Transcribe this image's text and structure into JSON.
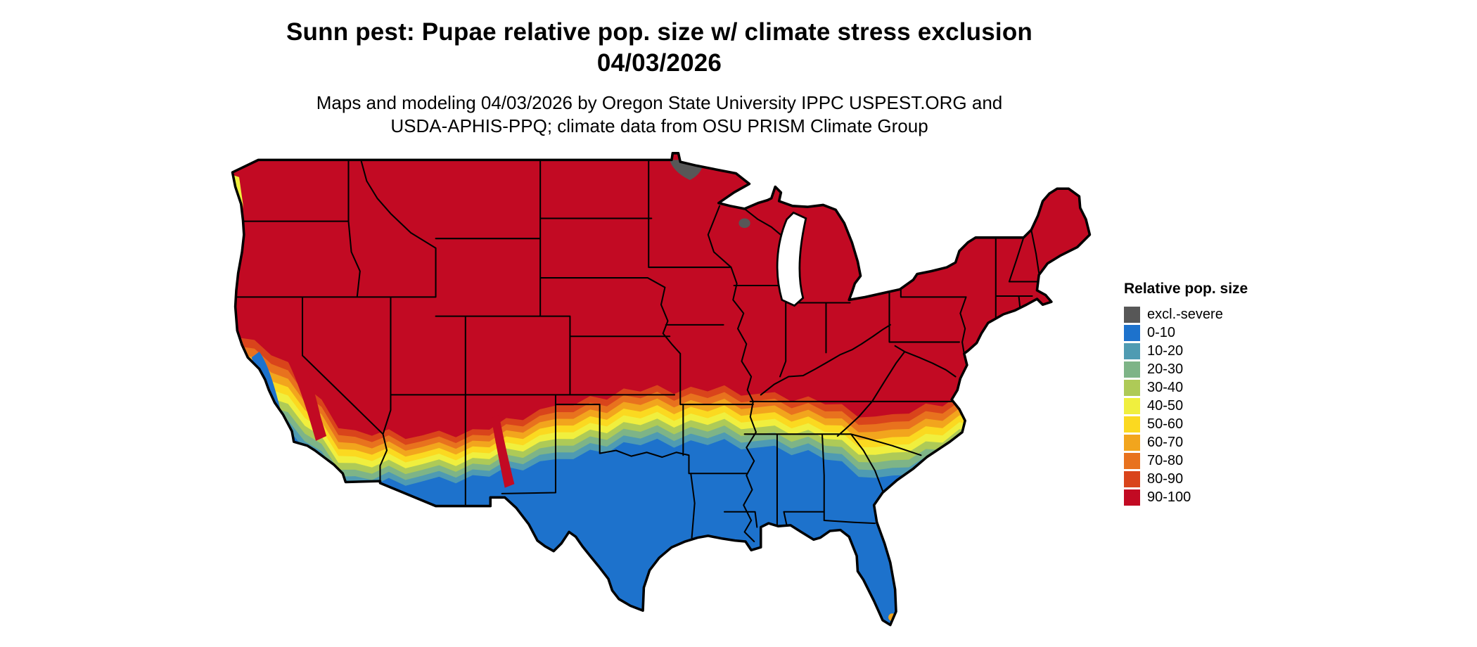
{
  "title": {
    "line1": "Sunn pest: Pupae relative pop. size w/ climate stress exclusion",
    "line2": "04/03/2026"
  },
  "subtitle": {
    "line1": "Maps and modeling 04/03/2026 by Oregon State University IPPC USPEST.ORG and",
    "line2": "USDA-APHIS-PPQ; climate data from OSU PRISM Climate Group"
  },
  "legend": {
    "title": "Relative pop. size",
    "items": [
      {
        "label": "excl.-severe",
        "color": "#575757"
      },
      {
        "label": "0-10",
        "color": "#1d72cc"
      },
      {
        "label": "10-20",
        "color": "#4f9bb2"
      },
      {
        "label": "20-30",
        "color": "#7eb487"
      },
      {
        "label": "30-40",
        "color": "#aeca57"
      },
      {
        "label": "40-50",
        "color": "#f0ef3e"
      },
      {
        "label": "50-60",
        "color": "#fbd920"
      },
      {
        "label": "60-70",
        "color": "#f2a51d"
      },
      {
        "label": "70-80",
        "color": "#e8721e"
      },
      {
        "label": "80-90",
        "color": "#d9441b"
      },
      {
        "label": "90-100",
        "color": "#c20a23"
      }
    ]
  },
  "map": {
    "outline_color": "#000000",
    "state_border_color": "#000000",
    "water_color": "#ffffff"
  }
}
